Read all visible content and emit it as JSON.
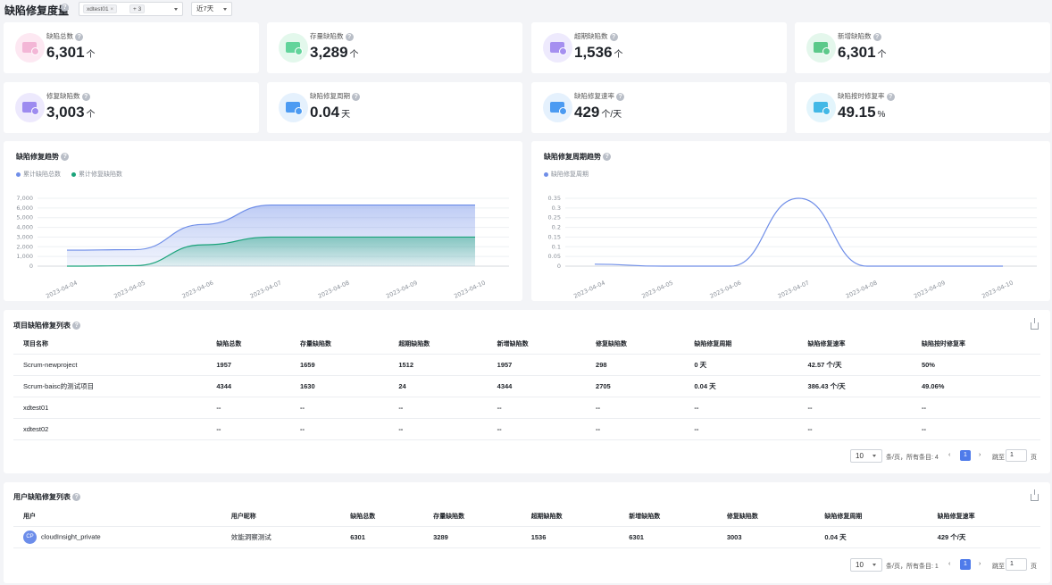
{
  "header": {
    "title": "缺陷修复度量",
    "filter_tag": "xdtest01",
    "filter_more": "+ 3",
    "range_label": "近7天"
  },
  "metrics": [
    {
      "label": "缺陷总数",
      "value": "6,301",
      "unit": "个",
      "icon": "defect-total-icon",
      "color": "#f3b6d6",
      "bg": "#fde8f2"
    },
    {
      "label": "存量缺陷数",
      "value": "3,289",
      "unit": "个",
      "icon": "defect-stock-icon",
      "color": "#62d49b",
      "bg": "#e3f8ec"
    },
    {
      "label": "超期缺陷数",
      "value": "1,536",
      "unit": "个",
      "icon": "defect-overdue-icon",
      "color": "#a58ff0",
      "bg": "#eeeafd"
    },
    {
      "label": "新增缺陷数",
      "value": "6,301",
      "unit": "个",
      "icon": "defect-new-icon",
      "color": "#5cc98a",
      "bg": "#e4f7ec"
    },
    {
      "label": "修复缺陷数",
      "value": "3,003",
      "unit": "个",
      "icon": "defect-fixed-icon",
      "color": "#9d8bf0",
      "bg": "#ede9fd"
    },
    {
      "label": "缺陷修复周期",
      "value": "0.04",
      "unit": "天",
      "icon": "repair-cycle-icon",
      "color": "#4c9bf2",
      "bg": "#e5f1fd"
    },
    {
      "label": "缺陷修复速率",
      "value": "429",
      "unit": "个/天",
      "icon": "repair-rate-icon",
      "color": "#4c9bf2",
      "bg": "#e5f1fd"
    },
    {
      "label": "缺陷按时修复率",
      "value": "49.15",
      "unit": "%",
      "icon": "ontime-rate-icon",
      "color": "#42b8e6",
      "bg": "#e3f5fc"
    }
  ],
  "trend_panel": {
    "title": "缺陷修复趋势",
    "legend": [
      {
        "name": "累计缺陷总数",
        "color": "#6f8ee8"
      },
      {
        "name": "累计修复缺陷数",
        "color": "#1aa37a"
      }
    ]
  },
  "cycle_panel": {
    "title": "缺陷修复周期趋势",
    "legend": [
      {
        "name": "缺陷修复周期",
        "color": "#6f8ee8"
      }
    ]
  },
  "chart_data": [
    {
      "type": "area",
      "x": [
        "2023-04-04",
        "2023-04-05",
        "2023-04-06",
        "2023-04-07",
        "2023-04-08",
        "2023-04-09",
        "2023-04-10"
      ],
      "xlabel": "",
      "ylabel": "",
      "ylim": [
        0,
        7000
      ],
      "yticks": [
        "0",
        "1,000",
        "2,000",
        "3,000",
        "4,000",
        "5,000",
        "6,000",
        "7,000"
      ],
      "grid": true,
      "legend": "top-left",
      "series": [
        {
          "name": "累计缺陷总数",
          "values": [
            1650,
            1700,
            4300,
            6300,
            6300,
            6300,
            6300
          ],
          "color": "#6f8ee8"
        },
        {
          "name": "累计修复缺陷数",
          "values": [
            0,
            50,
            2200,
            3000,
            3000,
            3000,
            3000
          ],
          "color": "#1aa37a"
        }
      ]
    },
    {
      "type": "line",
      "x": [
        "2023-04-04",
        "2023-04-05",
        "2023-04-06",
        "2023-04-07",
        "2023-04-08",
        "2023-04-09",
        "2023-04-10"
      ],
      "xlabel": "",
      "ylabel": "",
      "ylim": [
        0,
        0.35
      ],
      "yticks": [
        "0",
        "0.05",
        "0.1",
        "0.15",
        "0.2",
        "0.25",
        "0.3",
        "0.35"
      ],
      "grid": true,
      "legend": "top-left",
      "series": [
        {
          "name": "缺陷修复周期",
          "values": [
            0.01,
            0,
            0,
            0.35,
            0,
            0,
            0
          ],
          "color": "#6f8ee8"
        }
      ]
    }
  ],
  "project_table": {
    "title": "项目缺陷修复列表",
    "columns": [
      "项目名称",
      "缺陷总数",
      "存量缺陷数",
      "超期缺陷数",
      "新增缺陷数",
      "修复缺陷数",
      "缺陷修复周期",
      "缺陷修复速率",
      "缺陷按时修复率"
    ],
    "rows": [
      [
        "Scrum-newproject",
        "1957",
        "1659",
        "1512",
        "1957",
        "298",
        "0 天",
        "42.57 个/天",
        "50%"
      ],
      [
        "Scrum-baisc的测试项目",
        "4344",
        "1630",
        "24",
        "4344",
        "2705",
        "0.04 天",
        "386.43 个/天",
        "49.06%"
      ],
      [
        "xdtest01",
        "--",
        "--",
        "--",
        "--",
        "--",
        "--",
        "--",
        "--"
      ],
      [
        "xdtest02",
        "--",
        "--",
        "--",
        "--",
        "--",
        "--",
        "--",
        "--"
      ]
    ],
    "pager": {
      "page_size": "10",
      "info": "条/页，所有条目: 4",
      "page": "1",
      "goto": "跳至",
      "goto_value": "1",
      "page_suffix": "页"
    }
  },
  "user_table": {
    "title": "用户缺陷修复列表",
    "columns": [
      "用户",
      "用户昵称",
      "缺陷总数",
      "存量缺陷数",
      "超期缺陷数",
      "新增缺陷数",
      "修复缺陷数",
      "缺陷修复周期",
      "缺陷修复速率"
    ],
    "rows": [
      {
        "avatar": "CP",
        "cells": [
          "cloudInsight_private",
          "效能洞察测试",
          "6301",
          "3289",
          "1536",
          "6301",
          "3003",
          "0.04 天",
          "429 个/天"
        ]
      }
    ],
    "pager": {
      "page_size": "10",
      "info": "条/页，所有条目: 1",
      "page": "1",
      "goto": "跳至",
      "goto_value": "1",
      "page_suffix": "页"
    }
  }
}
